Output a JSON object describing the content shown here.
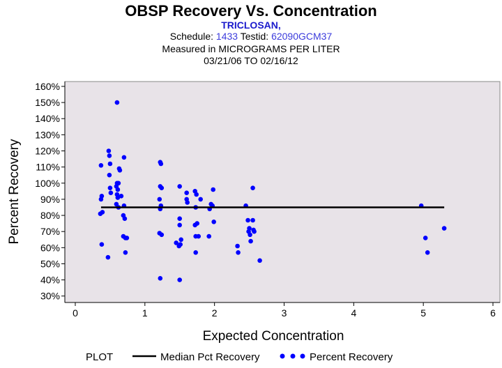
{
  "header": {
    "title": "OBSP Recovery Vs. Concentration",
    "subtitle": "TRICLOSAN,",
    "schedule_label": "Schedule:",
    "schedule_value": "1433",
    "testid_label": "Testid:",
    "testid_value": "62090GCM37",
    "measured_text": "Measured in  MICROGRAMS PER LITER",
    "date_range": "03/21/06 TO 02/16/12"
  },
  "legend": {
    "plot_label": "PLOT",
    "median_label": "Median Pct Recovery",
    "points_label": "Percent Recovery"
  },
  "colors": {
    "plot_background": "#e8e3e8",
    "points": "#0000ff",
    "median_line": "#000000"
  },
  "chart_data": {
    "type": "scatter",
    "title": "OBSP Recovery Vs. Concentration",
    "xlabel": "Expected Concentration",
    "ylabel": "Percent Recovery",
    "xlim": [
      -0.15,
      6.1
    ],
    "ylim": [
      26,
      163
    ],
    "x_ticks": [
      0,
      1,
      2,
      3,
      4,
      5,
      6
    ],
    "x_tick_labels": [
      "0",
      "1",
      "2",
      "3",
      "4",
      "5",
      "6"
    ],
    "y_ticks": [
      30,
      40,
      50,
      60,
      70,
      80,
      90,
      100,
      110,
      120,
      130,
      140,
      150,
      160
    ],
    "y_tick_labels": [
      "30%",
      "40%",
      "50%",
      "60%",
      "70%",
      "80%",
      "90%",
      "100%",
      "110%",
      "120%",
      "130%",
      "140%",
      "150%",
      "160%"
    ],
    "median_line": {
      "x": [
        0.37,
        5.3
      ],
      "y": 85
    },
    "series": [
      {
        "name": "Percent Recovery",
        "points": [
          [
            0.37,
            111
          ],
          [
            0.38,
            92
          ],
          [
            0.37,
            90
          ],
          [
            0.36,
            81
          ],
          [
            0.39,
            82
          ],
          [
            0.38,
            62
          ],
          [
            0.48,
            120
          ],
          [
            0.49,
            117
          ],
          [
            0.5,
            112
          ],
          [
            0.49,
            105
          ],
          [
            0.5,
            97
          ],
          [
            0.51,
            94
          ],
          [
            0.47,
            54
          ],
          [
            0.6,
            150
          ],
          [
            0.6,
            100
          ],
          [
            0.62,
            100
          ],
          [
            0.59,
            98
          ],
          [
            0.61,
            96
          ],
          [
            0.6,
            93
          ],
          [
            0.61,
            91
          ],
          [
            0.59,
            87
          ],
          [
            0.62,
            85
          ],
          [
            0.63,
            109
          ],
          [
            0.64,
            108
          ],
          [
            0.66,
            92
          ],
          [
            0.7,
            116
          ],
          [
            0.7,
            86
          ],
          [
            0.69,
            80
          ],
          [
            0.71,
            78
          ],
          [
            0.69,
            67
          ],
          [
            0.72,
            66
          ],
          [
            0.74,
            66
          ],
          [
            0.72,
            57
          ],
          [
            1.22,
            113
          ],
          [
            1.23,
            112
          ],
          [
            1.22,
            98
          ],
          [
            1.24,
            97
          ],
          [
            1.21,
            90
          ],
          [
            1.23,
            86
          ],
          [
            1.22,
            84
          ],
          [
            1.21,
            69
          ],
          [
            1.24,
            68
          ],
          [
            1.22,
            41
          ],
          [
            1.45,
            63
          ],
          [
            1.5,
            98
          ],
          [
            1.5,
            78
          ],
          [
            1.5,
            74
          ],
          [
            1.51,
            62
          ],
          [
            1.49,
            61
          ],
          [
            1.52,
            65
          ],
          [
            1.5,
            40
          ],
          [
            1.6,
            94
          ],
          [
            1.6,
            90
          ],
          [
            1.61,
            88
          ],
          [
            1.72,
            95
          ],
          [
            1.74,
            93
          ],
          [
            1.73,
            85
          ],
          [
            1.72,
            74
          ],
          [
            1.75,
            75
          ],
          [
            1.73,
            67
          ],
          [
            1.77,
            67
          ],
          [
            1.73,
            57
          ],
          [
            1.8,
            90
          ],
          [
            1.93,
            84
          ],
          [
            1.95,
            87
          ],
          [
            1.97,
            86
          ],
          [
            1.98,
            96
          ],
          [
            1.99,
            76
          ],
          [
            1.92,
            67
          ],
          [
            2.33,
            61
          ],
          [
            2.34,
            57
          ],
          [
            2.45,
            86
          ],
          [
            2.48,
            77
          ],
          [
            2.49,
            70
          ],
          [
            2.5,
            72
          ],
          [
            2.51,
            68
          ],
          [
            2.52,
            64
          ],
          [
            2.55,
            97
          ],
          [
            2.55,
            77
          ],
          [
            2.56,
            71
          ],
          [
            2.57,
            70
          ],
          [
            2.65,
            52
          ],
          [
            4.97,
            86
          ],
          [
            5.03,
            66
          ],
          [
            5.06,
            57
          ],
          [
            5.3,
            72
          ]
        ]
      }
    ]
  }
}
